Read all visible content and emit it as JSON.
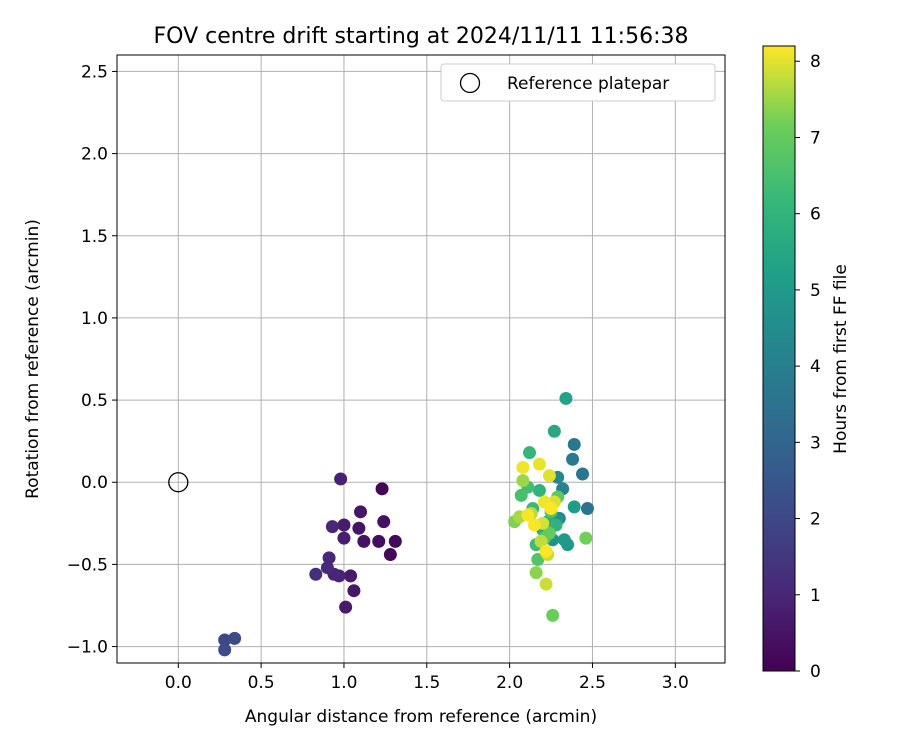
{
  "chart_data": {
    "type": "scatter",
    "title": "FOV centre drift starting at 2024/11/11 11:56:38",
    "xlabel": "Angular distance from reference (arcmin)",
    "ylabel": "Rotation from reference (arcmin)",
    "xlim": [
      -0.37,
      3.3
    ],
    "ylim": [
      -1.1,
      2.6
    ],
    "x_ticks": [
      0.0,
      0.5,
      1.0,
      1.5,
      2.0,
      2.5,
      3.0
    ],
    "x_tick_labels": [
      "0.0",
      "0.5",
      "1.0",
      "1.5",
      "2.0",
      "2.5",
      "3.0"
    ],
    "y_ticks": [
      -1.0,
      -0.5,
      0.0,
      0.5,
      1.0,
      1.5,
      2.0,
      2.5
    ],
    "y_tick_labels": [
      "−1.0",
      "−0.5",
      "0.0",
      "0.5",
      "1.0",
      "1.5",
      "2.0",
      "2.5"
    ],
    "grid": true,
    "legend": {
      "placement": "upper-right",
      "entries": [
        {
          "label": "Reference platepar",
          "marker": "open-circle"
        }
      ]
    },
    "reference_point": {
      "x": 0.0,
      "y": 0.0
    },
    "colorbar": {
      "label": "Hours from first FF file",
      "min": 0,
      "max": 8.2,
      "ticks": [
        0,
        1,
        2,
        3,
        4,
        5,
        6,
        7,
        8
      ],
      "tick_labels": [
        "0",
        "1",
        "2",
        "3",
        "4",
        "5",
        "6",
        "7",
        "8"
      ],
      "colormap": "viridis"
    },
    "points": [
      {
        "x": 1.23,
        "y": -0.04,
        "c": 0.1
      },
      {
        "x": 1.28,
        "y": -0.44,
        "c": 0.15
      },
      {
        "x": 1.31,
        "y": -0.36,
        "c": 0.2
      },
      {
        "x": 1.21,
        "y": -0.36,
        "c": 0.3
      },
      {
        "x": 1.24,
        "y": -0.24,
        "c": 0.4
      },
      {
        "x": 1.12,
        "y": -0.36,
        "c": 0.45
      },
      {
        "x": 1.09,
        "y": -0.28,
        "c": 0.5
      },
      {
        "x": 1.1,
        "y": -0.18,
        "c": 0.55
      },
      {
        "x": 1.06,
        "y": -0.66,
        "c": 0.6
      },
      {
        "x": 1.04,
        "y": -0.57,
        "c": 0.65
      },
      {
        "x": 1.01,
        "y": -0.76,
        "c": 0.7
      },
      {
        "x": 1.0,
        "y": -0.26,
        "c": 0.75
      },
      {
        "x": 1.0,
        "y": -0.34,
        "c": 0.8
      },
      {
        "x": 0.98,
        "y": 0.02,
        "c": 0.85
      },
      {
        "x": 0.97,
        "y": -0.57,
        "c": 0.9
      },
      {
        "x": 0.94,
        "y": -0.56,
        "c": 0.95
      },
      {
        "x": 0.93,
        "y": -0.27,
        "c": 1.0
      },
      {
        "x": 0.91,
        "y": -0.46,
        "c": 1.05
      },
      {
        "x": 0.9,
        "y": -0.52,
        "c": 1.1
      },
      {
        "x": 0.83,
        "y": -0.56,
        "c": 1.2
      },
      {
        "x": 0.28,
        "y": -0.96,
        "c": 2.0
      },
      {
        "x": 0.34,
        "y": -0.95,
        "c": 2.05
      },
      {
        "x": 0.28,
        "y": -1.02,
        "c": 2.1
      },
      {
        "x": 2.47,
        "y": -0.16,
        "c": 3.5
      },
      {
        "x": 2.44,
        "y": 0.05,
        "c": 3.6
      },
      {
        "x": 2.39,
        "y": 0.23,
        "c": 3.7
      },
      {
        "x": 2.38,
        "y": 0.14,
        "c": 3.8
      },
      {
        "x": 2.32,
        "y": -0.04,
        "c": 4.1
      },
      {
        "x": 2.29,
        "y": 0.03,
        "c": 4.3
      },
      {
        "x": 2.3,
        "y": -0.22,
        "c": 4.5
      },
      {
        "x": 2.26,
        "y": -0.35,
        "c": 4.7
      },
      {
        "x": 2.35,
        "y": -0.38,
        "c": 4.9
      },
      {
        "x": 2.33,
        "y": -0.35,
        "c": 5.0
      },
      {
        "x": 2.39,
        "y": -0.15,
        "c": 5.1
      },
      {
        "x": 2.34,
        "y": 0.51,
        "c": 5.3
      },
      {
        "x": 2.27,
        "y": 0.31,
        "c": 5.5
      },
      {
        "x": 2.23,
        "y": -0.24,
        "c": 5.6
      },
      {
        "x": 2.2,
        "y": -0.29,
        "c": 5.8
      },
      {
        "x": 2.28,
        "y": -0.26,
        "c": 5.9
      },
      {
        "x": 2.18,
        "y": -0.05,
        "c": 6.0
      },
      {
        "x": 2.12,
        "y": 0.18,
        "c": 6.1
      },
      {
        "x": 2.14,
        "y": -0.16,
        "c": 6.2
      },
      {
        "x": 2.16,
        "y": -0.38,
        "c": 6.3
      },
      {
        "x": 2.11,
        "y": -0.03,
        "c": 6.4
      },
      {
        "x": 2.07,
        "y": -0.08,
        "c": 6.5
      },
      {
        "x": 2.25,
        "y": -0.18,
        "c": 6.6
      },
      {
        "x": 2.17,
        "y": -0.47,
        "c": 6.7
      },
      {
        "x": 2.21,
        "y": -0.34,
        "c": 6.8
      },
      {
        "x": 2.29,
        "y": -0.09,
        "c": 6.9
      },
      {
        "x": 2.24,
        "y": -0.31,
        "c": 7.0
      },
      {
        "x": 2.26,
        "y": -0.81,
        "c": 7.1
      },
      {
        "x": 2.46,
        "y": -0.34,
        "c": 7.2
      },
      {
        "x": 2.03,
        "y": -0.24,
        "c": 7.3
      },
      {
        "x": 2.16,
        "y": -0.55,
        "c": 7.4
      },
      {
        "x": 2.08,
        "y": 0.01,
        "c": 7.5
      },
      {
        "x": 2.06,
        "y": -0.21,
        "c": 7.6
      },
      {
        "x": 2.13,
        "y": -0.19,
        "c": 7.7
      },
      {
        "x": 2.19,
        "y": -0.36,
        "c": 7.75
      },
      {
        "x": 2.23,
        "y": -0.44,
        "c": 7.8
      },
      {
        "x": 2.22,
        "y": -0.62,
        "c": 7.85
      },
      {
        "x": 2.2,
        "y": -0.25,
        "c": 7.9
      },
      {
        "x": 2.27,
        "y": -0.12,
        "c": 7.95
      },
      {
        "x": 2.24,
        "y": 0.04,
        "c": 8.0
      },
      {
        "x": 2.18,
        "y": 0.11,
        "c": 8.05
      },
      {
        "x": 2.21,
        "y": -0.12,
        "c": 8.1
      },
      {
        "x": 2.08,
        "y": 0.09,
        "c": 8.1
      },
      {
        "x": 2.15,
        "y": -0.26,
        "c": 8.15
      },
      {
        "x": 2.11,
        "y": -0.2,
        "c": 8.15
      },
      {
        "x": 2.25,
        "y": -0.16,
        "c": 8.2
      },
      {
        "x": 2.22,
        "y": -0.42,
        "c": 8.2
      }
    ]
  }
}
